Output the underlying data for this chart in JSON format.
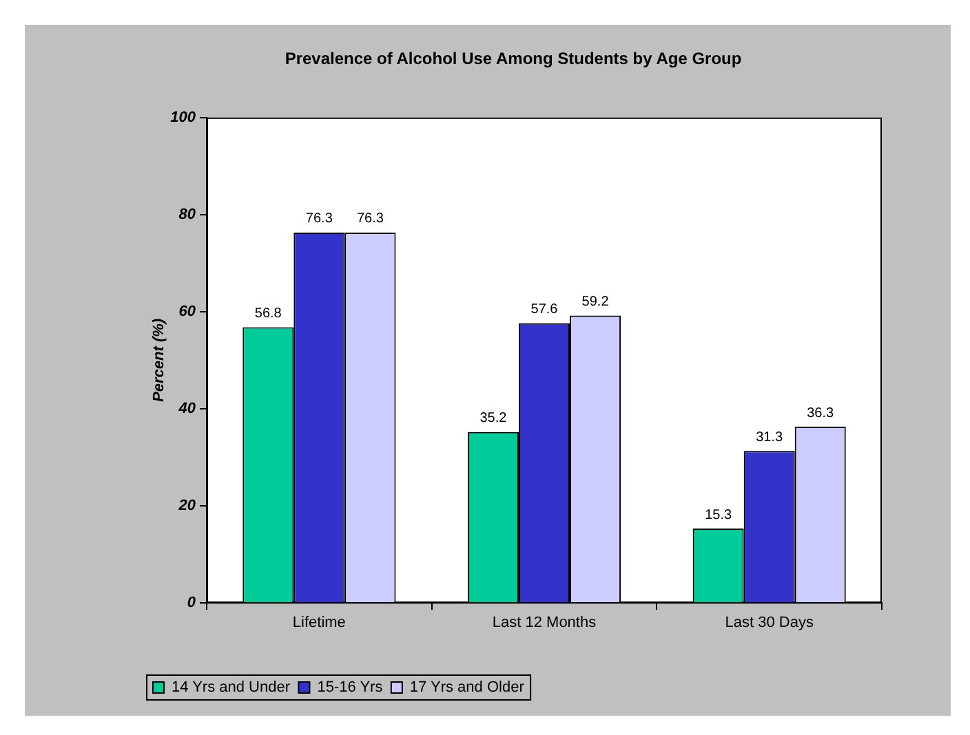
{
  "chart_data": {
    "type": "bar",
    "title": "Prevalence of Alcohol Use Among Students by Age Group",
    "ylabel": "Percent (%)",
    "categories": [
      "Lifetime",
      "Last 12 Months",
      "Last 30 Days"
    ],
    "series": [
      {
        "name": "14 Yrs and Under",
        "color": "#00cc99",
        "values": [
          56.8,
          35.2,
          15.3
        ]
      },
      {
        "name": "15-16 Yrs",
        "color": "#3333cc",
        "values": [
          76.3,
          57.6,
          31.3
        ]
      },
      {
        "name": "17 Yrs and Older",
        "color": "#ccccff",
        "values": [
          76.3,
          59.2,
          36.3
        ]
      }
    ],
    "ylim": [
      0,
      100
    ],
    "yticks": [
      0,
      20,
      40,
      60,
      80,
      100
    ],
    "grid": false,
    "legend": "bottom",
    "data_labels": true
  }
}
